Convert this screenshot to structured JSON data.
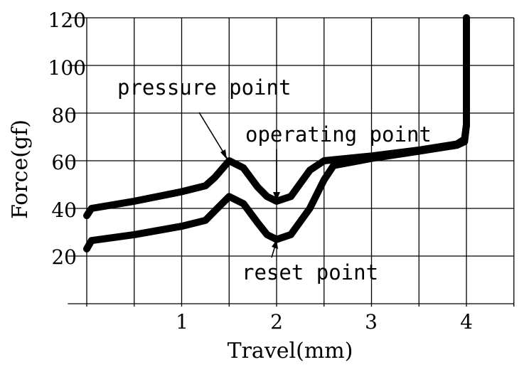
{
  "chart_data": {
    "type": "line",
    "xlabel": "Travel(mm)",
    "ylabel": "Force(gf)",
    "xlim": [
      0,
      4.5
    ],
    "ylim": [
      0,
      120
    ],
    "x_ticks": [
      "1",
      "2",
      "3",
      "4"
    ],
    "y_ticks": [
      "20",
      "40",
      "60",
      "80",
      "100",
      "120"
    ],
    "grid": true,
    "series": [
      {
        "x": [
          0,
          0.05,
          0.5,
          1.0,
          1.25,
          1.35,
          1.5,
          1.65,
          1.8,
          1.9,
          2.0,
          2.15,
          2.35,
          2.5,
          3.0,
          3.5,
          3.9,
          3.98,
          4.0,
          4.0
        ],
        "y": [
          37,
          40,
          43,
          47,
          49.5,
          53,
          60,
          57,
          49,
          45,
          43,
          45,
          56,
          60,
          62,
          64.5,
          67,
          69,
          75,
          120
        ]
      },
      {
        "x": [
          0,
          0.05,
          0.5,
          1.0,
          1.25,
          1.35,
          1.5,
          1.65,
          1.8,
          1.9,
          2.0,
          2.15,
          2.35,
          2.5,
          2.6,
          3.0,
          3.5,
          3.9,
          3.98,
          4.0,
          4.0
        ],
        "y": [
          23,
          26.5,
          29,
          32.5,
          35,
          39,
          45,
          42,
          34,
          29,
          27,
          29,
          40,
          52,
          58,
          61,
          64,
          66.5,
          68,
          75,
          120
        ]
      }
    ],
    "annotations": [
      {
        "text": "pressure point",
        "x": 1.5,
        "y": 60
      },
      {
        "text": "operating point",
        "x": 2.0,
        "y": 43
      },
      {
        "text": "reset point",
        "x": 2.0,
        "y": 27
      }
    ]
  }
}
